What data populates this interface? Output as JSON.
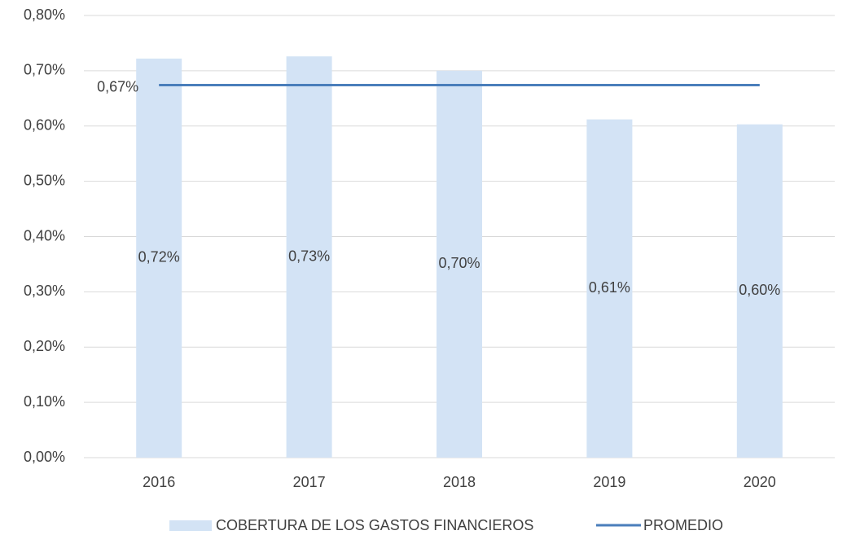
{
  "chart_data": {
    "type": "bar",
    "categories": [
      "2016",
      "2017",
      "2018",
      "2019",
      "2020"
    ],
    "series": [
      {
        "name": "COBERTURA DE LOS GASTOS FINANCIEROS",
        "type": "bar",
        "color": "#d3e3f5",
        "values": [
          0.722,
          0.726,
          0.7,
          0.612,
          0.603
        ],
        "value_labels": [
          "0,72%",
          "0,73%",
          "0,70%",
          "0,61%",
          "0,60%"
        ]
      },
      {
        "name": "PROMEDIO",
        "type": "line",
        "color": "#4a7ebb",
        "values": [
          0.674,
          0.674,
          0.674,
          0.674,
          0.674
        ],
        "value_labels": [
          "0,67%",
          null,
          null,
          null,
          null
        ]
      }
    ],
    "ylim": [
      0,
      0.8
    ],
    "yticks": [
      {
        "value": 0,
        "label": "0,00%"
      },
      {
        "value": 0.1,
        "label": "0,10%"
      },
      {
        "value": 0.2,
        "label": "0,20%"
      },
      {
        "value": 0.3,
        "label": "0,30%"
      },
      {
        "value": 0.4,
        "label": "0,40%"
      },
      {
        "value": 0.5,
        "label": "0,50%"
      },
      {
        "value": 0.6,
        "label": "0,60%"
      },
      {
        "value": 0.7,
        "label": "0,70%"
      },
      {
        "value": 0.8,
        "label": "0,80%"
      }
    ],
    "grid": true,
    "legend": "bottom"
  }
}
